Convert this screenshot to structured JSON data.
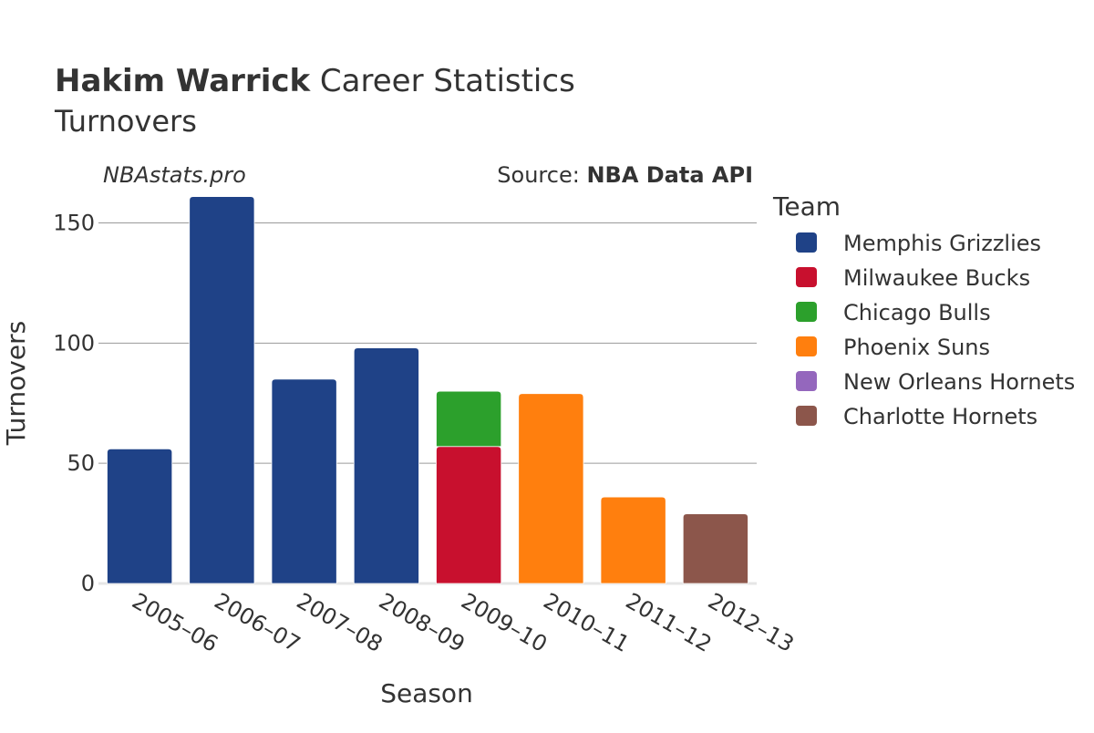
{
  "header": {
    "player_name": "Hakim Warrick",
    "title_rest": " Career Statistics",
    "subtitle": "Turnovers",
    "site": "NBAstats.pro",
    "source_prefix": "Source: ",
    "source_name": "NBA Data API"
  },
  "legend": {
    "title": "Team",
    "teams": [
      {
        "name": "Memphis Grizzlies",
        "color": "#1f4287"
      },
      {
        "name": "Milwaukee Bucks",
        "color": "#c8102e"
      },
      {
        "name": "Chicago Bulls",
        "color": "#2ca02c"
      },
      {
        "name": "Phoenix Suns",
        "color": "#ff7f0e"
      },
      {
        "name": "New Orleans Hornets",
        "color": "#9467bd"
      },
      {
        "name": "Charlotte Hornets",
        "color": "#8c564b"
      }
    ]
  },
  "chart_data": {
    "type": "bar",
    "stacked": true,
    "xlabel": "Season",
    "ylabel": "Turnovers",
    "ylim": [
      0,
      165
    ],
    "yticks": [
      0,
      50,
      100,
      150
    ],
    "grid": true,
    "legend_position": "right",
    "categories": [
      "2005–06",
      "2006–07",
      "2007–08",
      "2008–09",
      "2009–10",
      "2010–11",
      "2011–12",
      "2012–13"
    ],
    "series": [
      {
        "name": "Memphis Grizzlies",
        "values": [
          56,
          161,
          85,
          98,
          0,
          0,
          0,
          0
        ]
      },
      {
        "name": "Milwaukee Bucks",
        "values": [
          0,
          0,
          0,
          0,
          57,
          0,
          0,
          0
        ]
      },
      {
        "name": "Chicago Bulls",
        "values": [
          0,
          0,
          0,
          0,
          23,
          0,
          0,
          0
        ]
      },
      {
        "name": "Phoenix Suns",
        "values": [
          0,
          0,
          0,
          0,
          0,
          79,
          36,
          0
        ]
      },
      {
        "name": "New Orleans Hornets",
        "values": [
          0,
          0,
          0,
          0,
          0,
          0,
          0,
          0
        ]
      },
      {
        "name": "Charlotte Hornets",
        "values": [
          0,
          0,
          0,
          0,
          0,
          0,
          0,
          29
        ]
      }
    ]
  }
}
